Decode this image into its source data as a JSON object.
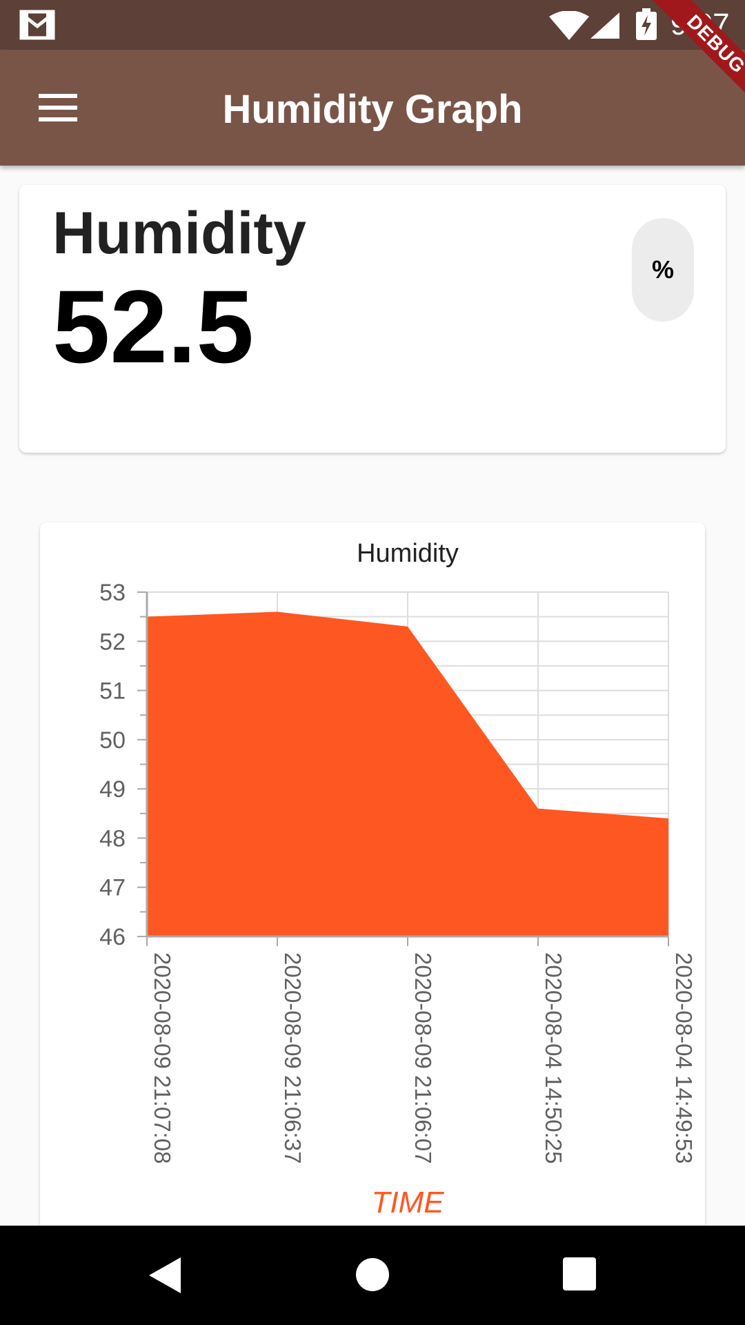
{
  "status_bar": {
    "time": "9:07",
    "icons": [
      "mail-icon",
      "wifi-icon",
      "signal-icon",
      "battery-charging-icon"
    ]
  },
  "debug_banner": "DEBUG",
  "app_bar": {
    "title": "Humidity Graph",
    "menu_icon": "menu-icon"
  },
  "reading": {
    "label": "Humidity",
    "value": "52.5",
    "unit": "%"
  },
  "colors": {
    "status_bar": "#5d4037",
    "app_bar": "#795548",
    "area_fill": "#ff5722",
    "x_title": "#ff5722"
  },
  "chart_data": {
    "type": "area",
    "title": "Humidity",
    "xlabel": "TIME",
    "ylabel": "",
    "ylim": [
      46,
      53
    ],
    "yticks": [
      46,
      47,
      48,
      49,
      50,
      51,
      52,
      53
    ],
    "categories": [
      "2020-08-09 21:07:08",
      "2020-08-09 21:06:37",
      "2020-08-09 21:06:07",
      "2020-08-04 14:50:25",
      "2020-08-04 14:49:53"
    ],
    "values": [
      52.5,
      52.6,
      52.3,
      48.6,
      48.4
    ],
    "grid": true
  },
  "nav_bar": {
    "buttons": [
      "back-icon",
      "home-icon",
      "recents-icon"
    ]
  }
}
